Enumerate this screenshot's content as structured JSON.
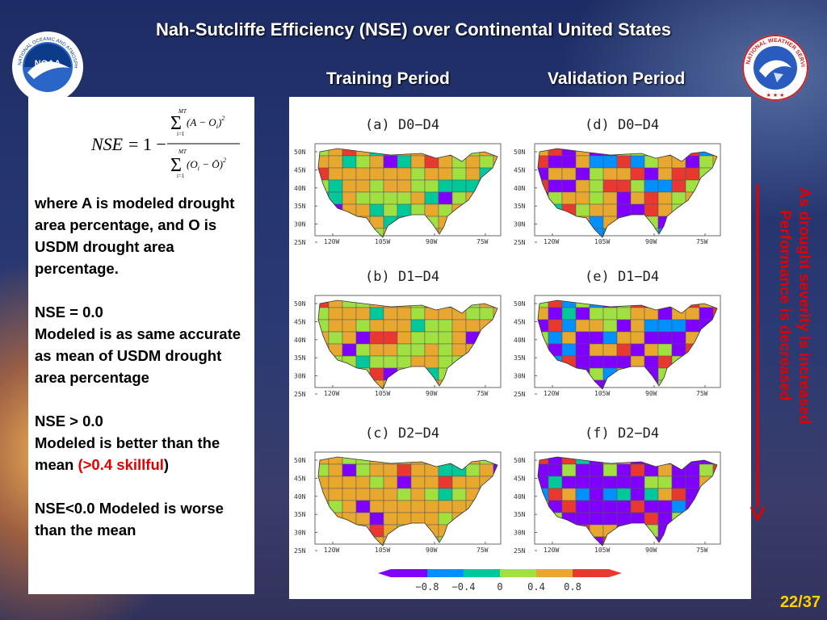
{
  "slide": {
    "title": "Nah-Sutcliffe Efficiency  (NSE) over Continental United States",
    "training_label": "Training Period",
    "validation_label": "Validation Period",
    "page_number": "22/37",
    "side_annotation": {
      "line1": "As drought severity is increased",
      "line2": "Performance is decreased"
    },
    "logos": {
      "left": {
        "name": "NOAA",
        "text": "NOAA",
        "ring_text": "NATIONAL OCEANIC AND ATMOSPHERIC ADMINISTRATION"
      },
      "right": {
        "name": "NATIONAL WEATHER SERVICE",
        "ring_text": "NATIONAL WEATHER SERVICE"
      }
    }
  },
  "equation": {
    "lhs": "NSE",
    "eq": "= 1 −",
    "num_sum_top": "MT",
    "num_sum_bottom": "i=1",
    "num_body": "(A − O",
    "num_sub": "i",
    "num_close": ")",
    "num_sup": "2",
    "den_sum_top": "MT",
    "den_sum_bottom": "i=1",
    "den_body": "(O",
    "den_sub": "i",
    "den_mid": " − Ō)",
    "den_sup": "2"
  },
  "explanation": {
    "p1": "where A is modeled drought area percentage, and O is USDM drought area percentage.",
    "p2_a": "NSE = 0.0",
    "p2_b": "Modeled is as same accurate as mean of USDM drought area percentage",
    "p3_a": "NSE > 0.0",
    "p3_b": "Modeled is better than the mean ",
    "p3_red": "(>0.4 skillful",
    "p3_close": ")",
    "p4": "NSE<0.0 Modeled is worse than the mean"
  },
  "maps": [
    {
      "title": "(a)  D0−D4",
      "period": "training",
      "dominant": "orange"
    },
    {
      "title": "(d)  D0−D4",
      "period": "validation",
      "dominant": "mixed"
    },
    {
      "title": "(b)  D1−D4",
      "period": "training",
      "dominant": "orange"
    },
    {
      "title": "(e)  D1−D4",
      "period": "validation",
      "dominant": "purple-blue"
    },
    {
      "title": "(c)  D2−D4",
      "period": "training",
      "dominant": "orange"
    },
    {
      "title": "(f)  D2−D4",
      "period": "validation",
      "dominant": "purple"
    }
  ],
  "map_axes": {
    "y_ticks": [
      "50N",
      "45N",
      "40N",
      "35N",
      "30N",
      "25N"
    ],
    "x_ticks": [
      "120W",
      "105W",
      "90W",
      "75W"
    ]
  },
  "colorbar": {
    "tick_labels": [
      "−0.8",
      "−0.4",
      "0",
      "0.4",
      "0.8"
    ],
    "colors": [
      "#8000ff",
      "#0090ff",
      "#00c89a",
      "#a0e040",
      "#e8a830",
      "#e83830"
    ]
  }
}
